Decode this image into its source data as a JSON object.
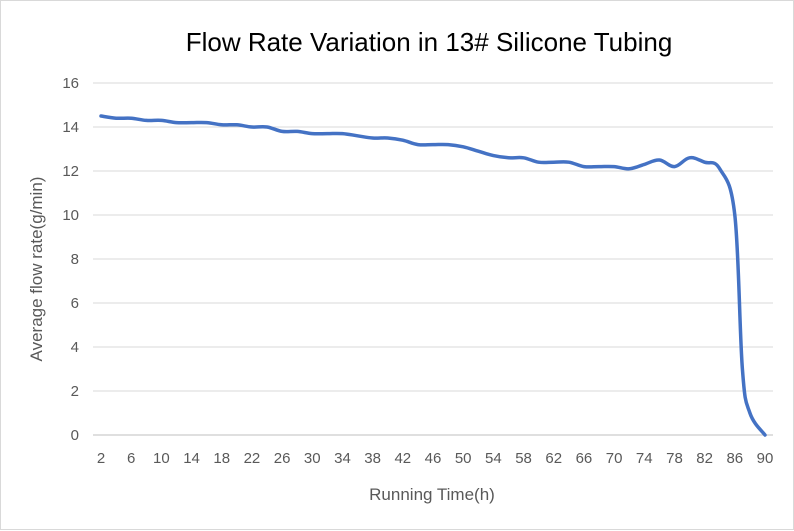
{
  "chart_data": {
    "type": "line",
    "title": "Flow Rate Variation in 13# Silicone Tubing",
    "xlabel": "Running Time(h)",
    "ylabel": "Average flow rate(g/min)",
    "ylim": [
      0,
      16
    ],
    "yticks": [
      "0",
      "2",
      "4",
      "6",
      "8",
      "10",
      "12",
      "14",
      "16"
    ],
    "grid": true,
    "legend": "none",
    "line_color": "#4472C4",
    "categories": [
      2,
      4,
      6,
      8,
      10,
      12,
      14,
      16,
      18,
      20,
      22,
      24,
      26,
      28,
      30,
      32,
      34,
      36,
      38,
      40,
      42,
      44,
      46,
      48,
      50,
      52,
      54,
      56,
      58,
      60,
      62,
      64,
      66,
      68,
      70,
      72,
      74,
      76,
      78,
      80,
      82,
      84,
      86,
      87,
      88,
      90
    ],
    "tick_labels": [
      "2",
      "6",
      "10",
      "14",
      "18",
      "22",
      "26",
      "30",
      "34",
      "38",
      "42",
      "46",
      "50",
      "54",
      "58",
      "62",
      "66",
      "70",
      "74",
      "78",
      "82",
      "86",
      "90"
    ],
    "series": [
      {
        "values": [
          14.5,
          14.4,
          14.4,
          14.3,
          14.3,
          14.2,
          14.2,
          14.2,
          14.1,
          14.1,
          14.0,
          14.0,
          13.8,
          13.8,
          13.7,
          13.7,
          13.7,
          13.6,
          13.5,
          13.5,
          13.4,
          13.2,
          13.2,
          13.2,
          13.1,
          12.9,
          12.7,
          12.6,
          12.6,
          12.4,
          12.4,
          12.4,
          12.2,
          12.2,
          12.2,
          12.1,
          12.3,
          12.5,
          12.2,
          12.6,
          12.4,
          12.1,
          10.0,
          3.0,
          1.0,
          0.0
        ]
      }
    ]
  }
}
